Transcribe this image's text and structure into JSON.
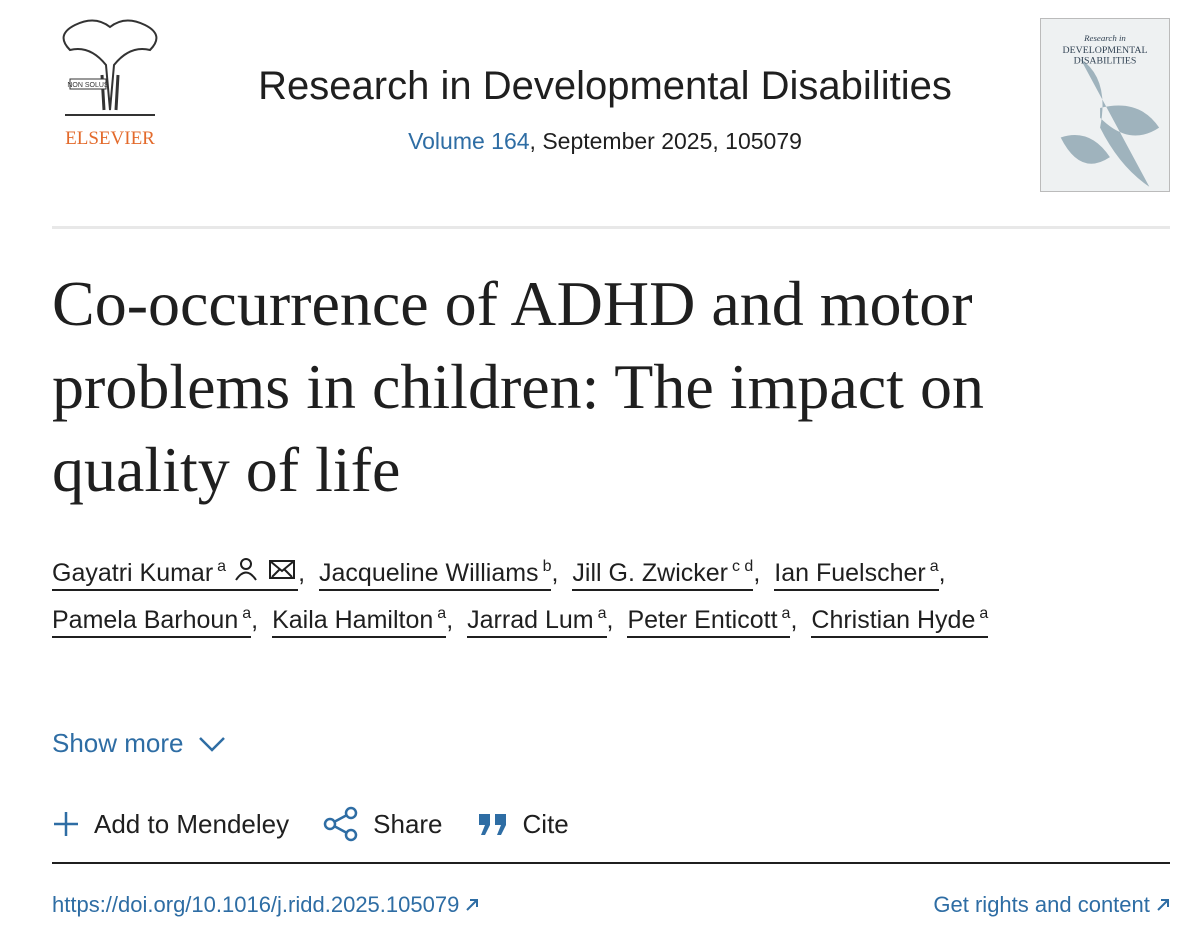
{
  "header": {
    "publisher": "ELSEVIER",
    "logo_motto": "NON SOLUS",
    "journal": "Research in Developmental Disabilities",
    "volume_link": "Volume 164",
    "issue_info": ", September 2025, 105079",
    "cover": {
      "line1": "Research in",
      "line2": "DEVELOPMENTAL",
      "line3": "DISABILITIES"
    }
  },
  "article": {
    "title": "Co-occurrence of ADHD and motor problems in children: The impact on quality of life",
    "author_separator": ",",
    "authors": [
      {
        "name": "Gayatri Kumar",
        "affiliations": "a"
      },
      {
        "name": "Jacqueline Williams",
        "affiliations": "b"
      },
      {
        "name": "Jill G. Zwicker",
        "affiliations": "c d"
      },
      {
        "name": "Ian Fuelscher",
        "affiliations": "a"
      },
      {
        "name": "Pamela Barhoun",
        "affiliations": "a"
      },
      {
        "name": "Kaila Hamilton",
        "affiliations": "a"
      },
      {
        "name": "Jarrad Lum",
        "affiliations": "a"
      },
      {
        "name": "Peter Enticott",
        "affiliations": "a"
      },
      {
        "name": "Christian Hyde",
        "affiliations": "a"
      }
    ],
    "show_more": "Show more",
    "actions": {
      "mendeley": "Add to Mendeley",
      "share": "Share",
      "cite": "Cite"
    },
    "doi": "https://doi.org/10.1016/j.ridd.2025.105079",
    "rights": "Get rights and content"
  }
}
